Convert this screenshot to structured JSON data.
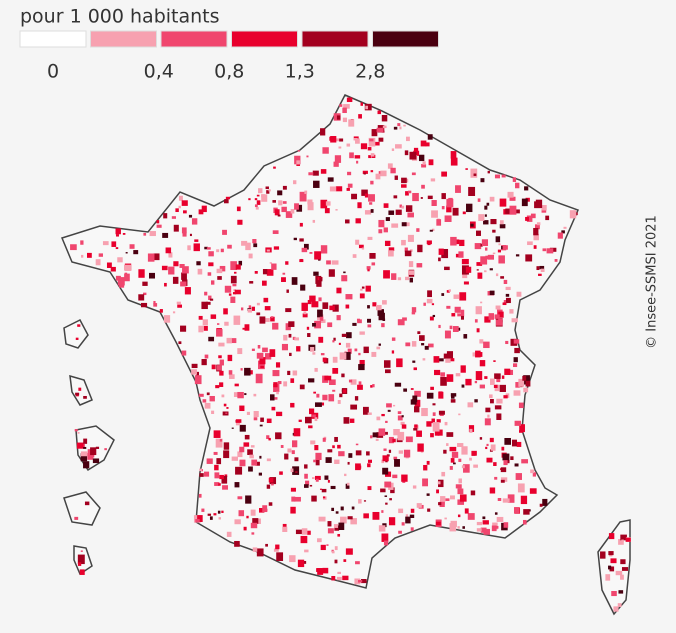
{
  "legend": {
    "title": "pour 1 000 habitants",
    "colors": [
      "#ffffff",
      "#f7a1b0",
      "#f0466e",
      "#e8002d",
      "#a3001f",
      "#4a0010"
    ],
    "labels": [
      "0",
      "0,4",
      "0,8",
      "1,3",
      "2,8"
    ]
  },
  "credit": "© Insee-SSMSI 2021"
}
